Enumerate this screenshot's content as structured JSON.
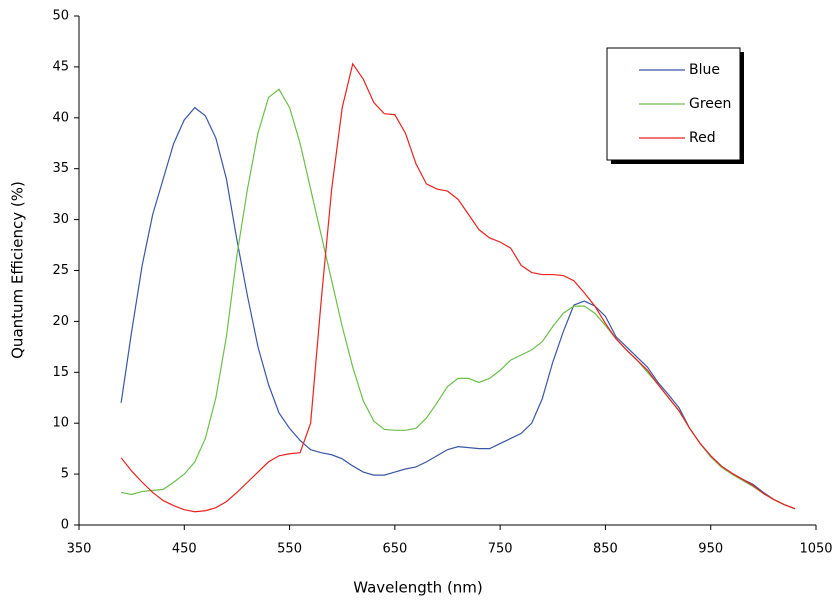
{
  "chart_data": {
    "type": "line",
    "xlabel": "Wavelength (nm)",
    "ylabel": "Quantum Efficiency (%)",
    "x": [
      390,
      400,
      410,
      420,
      430,
      440,
      450,
      460,
      470,
      480,
      490,
      500,
      510,
      520,
      530,
      540,
      550,
      560,
      570,
      580,
      590,
      600,
      610,
      620,
      630,
      640,
      650,
      660,
      670,
      680,
      690,
      700,
      710,
      720,
      730,
      740,
      750,
      760,
      770,
      780,
      790,
      800,
      810,
      820,
      830,
      840,
      850,
      860,
      870,
      880,
      890,
      900,
      910,
      920,
      930,
      940,
      950,
      960,
      970,
      980,
      990,
      1000,
      1010,
      1020,
      1030
    ],
    "series": [
      {
        "name": "Blue",
        "color": "#3a56a6",
        "values": [
          12,
          19,
          25.5,
          30.5,
          34,
          37.5,
          39.8,
          41,
          40.2,
          38,
          34,
          28,
          22.5,
          17.5,
          13.8,
          11,
          9.5,
          8.3,
          7.4,
          7.1,
          6.9,
          6.5,
          5.8,
          5.2,
          4.9,
          4.9,
          5.2,
          5.5,
          5.7,
          6.2,
          6.8,
          7.4,
          7.7,
          7.6,
          7.5,
          7.5,
          8,
          8.5,
          9,
          10,
          12.4,
          16,
          19,
          21.6,
          22,
          21.5,
          20.5,
          18.5,
          17.5,
          16.5,
          15.5,
          14,
          12.8,
          11.5,
          9.5,
          8,
          6.8,
          5.8,
          5.1,
          4.5,
          4,
          3.2,
          2.5,
          2,
          1.6
        ]
      },
      {
        "name": "Green",
        "color": "#6cbf4a",
        "values": [
          3.2,
          3,
          3.3,
          3.4,
          3.5,
          4.2,
          5,
          6.2,
          8.5,
          12.5,
          18.5,
          26.5,
          33,
          38.5,
          42,
          42.8,
          41,
          37.5,
          33,
          28.5,
          24,
          19.5,
          15.5,
          12.2,
          10.2,
          9.4,
          9.3,
          9.3,
          9.5,
          10.5,
          12,
          13.6,
          14.4,
          14.4,
          14,
          14.4,
          15.2,
          16.2,
          16.7,
          17.2,
          18,
          19.5,
          20.8,
          21.5,
          21.5,
          20.8,
          19.6,
          18.3,
          17.2,
          16.2,
          15,
          13.8,
          12.5,
          11.2,
          9.5,
          8,
          6.7,
          5.7,
          5,
          4.4,
          3.8,
          3.1,
          2.5,
          2,
          1.6
        ]
      },
      {
        "name": "Red",
        "color": "#e8231f",
        "values": [
          6.6,
          5.3,
          4.2,
          3.2,
          2.4,
          1.9,
          1.5,
          1.3,
          1.4,
          1.7,
          2.3,
          3.2,
          4.2,
          5.2,
          6.2,
          6.8,
          7,
          7.1,
          10,
          22,
          33,
          41,
          45.3,
          43.8,
          41.5,
          40.4,
          40.3,
          38.5,
          35.5,
          33.5,
          33,
          32.8,
          32,
          30.5,
          29,
          28.2,
          27.8,
          27.2,
          25.5,
          24.8,
          24.6,
          24.6,
          24.5,
          24,
          22.8,
          21.5,
          19.8,
          18.3,
          17.2,
          16.2,
          15.2,
          13.8,
          12.5,
          11.2,
          9.5,
          8,
          6.8,
          5.8,
          5.1,
          4.5,
          3.9,
          3.1,
          2.5,
          2,
          1.6
        ]
      }
    ],
    "xlim": [
      350,
      1050
    ],
    "xticks": [
      350,
      450,
      550,
      650,
      750,
      850,
      950,
      1050
    ],
    "ylim": [
      0,
      50
    ],
    "yticks": [
      0,
      5,
      10,
      15,
      20,
      25,
      30,
      35,
      40,
      45,
      50
    ],
    "grid": false,
    "legend": "upper right"
  }
}
